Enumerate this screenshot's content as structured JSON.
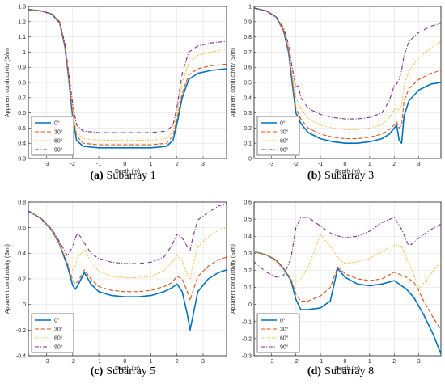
{
  "x_ticks": [
    -3,
    -2,
    -1,
    0,
    1,
    2,
    3
  ],
  "colors": {
    "s0": "#0072BD",
    "s30": "#D95319",
    "s60": "#EDB120",
    "s90": "#7E2F8E"
  },
  "legend_labels": [
    "0°",
    "30°",
    "60°",
    "90°"
  ],
  "chart_data": [
    {
      "type": "line",
      "caption_letter": "(a)",
      "caption_text": "Subarray 1",
      "xlabel": "Depth (m)",
      "ylabel": "Apparent conductivity (S/m)",
      "xlim": [
        -3.7,
        3.9
      ],
      "ylim": [
        0.3,
        1.3
      ],
      "yticks": [
        0.3,
        0.4,
        0.5,
        0.6,
        0.7,
        0.8,
        0.9,
        1,
        1.1,
        1.2,
        1.3
      ],
      "legend_position": "bottom-left",
      "series": [
        {
          "name": "0°",
          "x": [
            -3.7,
            -3.2,
            -2.8,
            -2.5,
            -2.3,
            -2.15,
            -2.0,
            -1.85,
            -1.6,
            -1.0,
            0,
            1.0,
            1.6,
            1.85,
            2.0,
            2.2,
            2.45,
            2.8,
            3.3,
            3.9
          ],
          "y": [
            1.28,
            1.27,
            1.25,
            1.19,
            1.04,
            0.82,
            0.57,
            0.42,
            0.38,
            0.37,
            0.37,
            0.37,
            0.38,
            0.42,
            0.53,
            0.7,
            0.82,
            0.86,
            0.88,
            0.89
          ]
        },
        {
          "name": "30°",
          "x": [
            -3.7,
            -3.2,
            -2.8,
            -2.5,
            -2.3,
            -2.15,
            -2.0,
            -1.85,
            -1.6,
            -1.0,
            0,
            1.0,
            1.6,
            1.85,
            2.0,
            2.2,
            2.45,
            2.8,
            3.3,
            3.9
          ],
          "y": [
            1.28,
            1.27,
            1.25,
            1.19,
            1.04,
            0.82,
            0.59,
            0.45,
            0.4,
            0.39,
            0.39,
            0.39,
            0.4,
            0.45,
            0.56,
            0.73,
            0.85,
            0.89,
            0.91,
            0.92
          ]
        },
        {
          "name": "60°",
          "x": [
            -3.7,
            -3.2,
            -2.8,
            -2.5,
            -2.3,
            -2.15,
            -2.0,
            -1.85,
            -1.6,
            -1.0,
            0,
            1.0,
            1.6,
            1.85,
            2.0,
            2.2,
            2.45,
            2.8,
            3.3,
            3.9
          ],
          "y": [
            1.28,
            1.27,
            1.25,
            1.19,
            1.05,
            0.84,
            0.63,
            0.48,
            0.43,
            0.42,
            0.42,
            0.42,
            0.43,
            0.48,
            0.6,
            0.8,
            0.93,
            0.98,
            1.0,
            1.02
          ]
        },
        {
          "name": "90°",
          "x": [
            -3.7,
            -3.2,
            -2.8,
            -2.5,
            -2.3,
            -2.15,
            -2.0,
            -1.85,
            -1.6,
            -1.0,
            0,
            1.0,
            1.6,
            1.85,
            2.0,
            2.2,
            2.45,
            2.8,
            3.3,
            3.9
          ],
          "y": [
            1.28,
            1.27,
            1.25,
            1.2,
            1.06,
            0.86,
            0.66,
            0.52,
            0.48,
            0.47,
            0.47,
            0.47,
            0.48,
            0.52,
            0.64,
            0.86,
            1.0,
            1.04,
            1.06,
            1.07
          ]
        }
      ]
    },
    {
      "type": "line",
      "caption_letter": "(b)",
      "caption_text": "Subarray 3",
      "xlabel": "Depth (m)",
      "ylabel": "Apparent conductivity (S/m)",
      "xlim": [
        -3.7,
        3.9
      ],
      "ylim": [
        0,
        1
      ],
      "yticks": [
        0,
        0.1,
        0.2,
        0.3,
        0.4,
        0.5,
        0.6,
        0.7,
        0.8,
        0.9,
        1
      ],
      "legend_position": "bottom-left",
      "series": [
        {
          "name": "0°",
          "x": [
            -3.7,
            -3.2,
            -2.8,
            -2.5,
            -2.3,
            -2.15,
            -2.0,
            -1.8,
            -1.5,
            -1.0,
            -0.5,
            0,
            0.5,
            1.0,
            1.5,
            1.8,
            2.0,
            2.1,
            2.2,
            2.3,
            2.4,
            2.6,
            3.0,
            3.5,
            3.9
          ],
          "y": [
            0.99,
            0.97,
            0.93,
            0.84,
            0.7,
            0.5,
            0.3,
            0.23,
            0.17,
            0.13,
            0.11,
            0.1,
            0.1,
            0.11,
            0.13,
            0.16,
            0.2,
            0.22,
            0.12,
            0.1,
            0.28,
            0.38,
            0.45,
            0.49,
            0.5
          ]
        },
        {
          "name": "30°",
          "x": [
            -3.7,
            -3.2,
            -2.8,
            -2.5,
            -2.3,
            -2.15,
            -2.0,
            -1.8,
            -1.5,
            -1.0,
            -0.5,
            0,
            0.5,
            1.0,
            1.5,
            1.8,
            2.0,
            2.1,
            2.2,
            2.3,
            2.4,
            2.6,
            3.0,
            3.5,
            3.9
          ],
          "y": [
            0.99,
            0.97,
            0.93,
            0.84,
            0.71,
            0.52,
            0.33,
            0.26,
            0.2,
            0.16,
            0.14,
            0.13,
            0.13,
            0.14,
            0.16,
            0.19,
            0.22,
            0.24,
            0.2,
            0.22,
            0.38,
            0.46,
            0.52,
            0.56,
            0.58
          ]
        },
        {
          "name": "60°",
          "x": [
            -3.7,
            -3.2,
            -2.8,
            -2.5,
            -2.3,
            -2.15,
            -2.0,
            -1.8,
            -1.5,
            -1.0,
            -0.5,
            0,
            0.5,
            1.0,
            1.5,
            1.8,
            2.0,
            2.1,
            2.2,
            2.3,
            2.4,
            2.6,
            3.0,
            3.5,
            3.9
          ],
          "y": [
            0.99,
            0.97,
            0.93,
            0.85,
            0.73,
            0.56,
            0.4,
            0.33,
            0.26,
            0.22,
            0.2,
            0.19,
            0.19,
            0.2,
            0.22,
            0.27,
            0.32,
            0.33,
            0.32,
            0.35,
            0.48,
            0.58,
            0.66,
            0.73,
            0.77
          ]
        },
        {
          "name": "90°",
          "x": [
            -3.7,
            -3.2,
            -2.8,
            -2.5,
            -2.3,
            -2.15,
            -2.0,
            -1.9,
            -1.8,
            -1.5,
            -1.0,
            -0.5,
            0,
            0.5,
            1.0,
            1.5,
            1.8,
            2.0,
            2.1,
            2.2,
            2.3,
            2.4,
            2.6,
            3.0,
            3.5,
            3.9
          ],
          "y": [
            0.99,
            0.97,
            0.93,
            0.86,
            0.75,
            0.6,
            0.47,
            0.48,
            0.4,
            0.33,
            0.29,
            0.27,
            0.26,
            0.26,
            0.27,
            0.3,
            0.38,
            0.48,
            0.49,
            0.52,
            0.58,
            0.68,
            0.77,
            0.83,
            0.87,
            0.89
          ]
        }
      ]
    },
    {
      "type": "line",
      "caption_letter": "(c)",
      "caption_text": "Subarray 5",
      "xlabel": "Depth (m)",
      "ylabel": "Apparent conductivity (S/m)",
      "xlim": [
        -3.7,
        3.9
      ],
      "ylim": [
        -0.4,
        0.8
      ],
      "yticks": [
        -0.4,
        -0.2,
        0,
        0.2,
        0.4,
        0.6,
        0.8
      ],
      "legend_position": "bottom-left",
      "series": [
        {
          "name": "0°",
          "x": [
            -3.7,
            -3.2,
            -2.8,
            -2.5,
            -2.2,
            -2.0,
            -1.9,
            -1.8,
            -1.55,
            -1.3,
            -1.0,
            -0.5,
            0,
            0.5,
            1.0,
            1.5,
            1.8,
            2.0,
            2.2,
            2.4,
            2.5,
            2.6,
            2.8,
            3.2,
            3.6,
            3.9
          ],
          "y": [
            0.73,
            0.67,
            0.58,
            0.47,
            0.3,
            0.15,
            0.12,
            0.15,
            0.25,
            0.16,
            0.1,
            0.07,
            0.06,
            0.06,
            0.07,
            0.1,
            0.13,
            0.16,
            0.1,
            -0.08,
            -0.2,
            -0.1,
            0.1,
            0.2,
            0.25,
            0.27
          ]
        },
        {
          "name": "30°",
          "x": [
            -3.7,
            -3.2,
            -2.8,
            -2.5,
            -2.2,
            -2.0,
            -1.9,
            -1.8,
            -1.55,
            -1.3,
            -1.0,
            -0.5,
            0,
            0.5,
            1.0,
            1.5,
            1.8,
            2.0,
            2.2,
            2.4,
            2.5,
            2.6,
            2.8,
            3.2,
            3.6,
            3.9
          ],
          "y": [
            0.73,
            0.67,
            0.58,
            0.47,
            0.32,
            0.19,
            0.16,
            0.18,
            0.27,
            0.2,
            0.14,
            0.11,
            0.1,
            0.1,
            0.11,
            0.14,
            0.17,
            0.22,
            0.2,
            0.1,
            0.03,
            0.1,
            0.22,
            0.3,
            0.35,
            0.37
          ]
        },
        {
          "name": "60°",
          "x": [
            -3.7,
            -3.2,
            -2.8,
            -2.5,
            -2.2,
            -2.0,
            -1.9,
            -1.8,
            -1.55,
            -1.3,
            -1.0,
            -0.5,
            0,
            0.5,
            1.0,
            1.5,
            1.8,
            2.0,
            2.2,
            2.4,
            2.5,
            2.6,
            2.8,
            3.2,
            3.6,
            3.9
          ],
          "y": [
            0.73,
            0.67,
            0.58,
            0.47,
            0.34,
            0.27,
            0.3,
            0.37,
            0.43,
            0.33,
            0.26,
            0.22,
            0.21,
            0.21,
            0.22,
            0.26,
            0.33,
            0.38,
            0.34,
            0.23,
            0.2,
            0.3,
            0.45,
            0.53,
            0.58,
            0.6
          ]
        },
        {
          "name": "90°",
          "x": [
            -3.7,
            -3.2,
            -2.8,
            -2.5,
            -2.2,
            -2.0,
            -1.9,
            -1.8,
            -1.55,
            -1.3,
            -1.0,
            -0.5,
            0,
            0.5,
            1.0,
            1.5,
            1.8,
            2.0,
            2.2,
            2.4,
            2.5,
            2.6,
            2.8,
            3.2,
            3.6,
            3.9
          ],
          "y": [
            0.73,
            0.67,
            0.59,
            0.49,
            0.38,
            0.45,
            0.52,
            0.56,
            0.48,
            0.4,
            0.36,
            0.33,
            0.32,
            0.32,
            0.33,
            0.37,
            0.46,
            0.55,
            0.52,
            0.45,
            0.42,
            0.52,
            0.66,
            0.72,
            0.77,
            0.79
          ]
        }
      ]
    },
    {
      "type": "line",
      "caption_letter": "(d)",
      "caption_text": "Subarray 8",
      "xlabel": "Depth (m)",
      "ylabel": "Apparent conductivity (S/m)",
      "xlim": [
        -3.7,
        3.9
      ],
      "ylim": [
        -0.3,
        0.6
      ],
      "yticks": [
        -0.3,
        -0.2,
        -0.1,
        0,
        0.1,
        0.2,
        0.3,
        0.4,
        0.5,
        0.6
      ],
      "legend_position": "bottom-left",
      "series": [
        {
          "name": "0°",
          "x": [
            -3.7,
            -3.2,
            -2.8,
            -2.5,
            -2.2,
            -2.0,
            -1.8,
            -1.5,
            -1.0,
            -0.6,
            -0.3,
            0,
            0.5,
            1.0,
            1.5,
            2.0,
            2.5,
            2.8,
            3.2,
            3.6,
            3.9
          ],
          "y": [
            0.31,
            0.29,
            0.26,
            0.21,
            0.14,
            0.03,
            -0.03,
            -0.03,
            -0.02,
            0.02,
            0.21,
            0.16,
            0.12,
            0.11,
            0.12,
            0.14,
            0.09,
            0.04,
            -0.06,
            -0.18,
            -0.29
          ]
        },
        {
          "name": "30°",
          "x": [
            -3.7,
            -3.2,
            -2.8,
            -2.5,
            -2.2,
            -2.0,
            -1.8,
            -1.5,
            -1.0,
            -0.6,
            -0.3,
            0,
            0.5,
            1.0,
            1.5,
            2.0,
            2.5,
            2.8,
            3.0,
            3.2,
            3.6,
            3.9
          ],
          "y": [
            0.31,
            0.29,
            0.26,
            0.21,
            0.15,
            0.06,
            0.02,
            0.02,
            0.05,
            0.1,
            0.22,
            0.18,
            0.15,
            0.14,
            0.15,
            0.19,
            0.16,
            0.13,
            0.08,
            0.02,
            -0.08,
            -0.15
          ]
        },
        {
          "name": "60°",
          "x": [
            -3.7,
            -3.2,
            -2.8,
            -2.5,
            -2.2,
            -2.0,
            -1.8,
            -1.5,
            -1.2,
            -1.0,
            -0.6,
            -0.2,
            0,
            0.5,
            1.0,
            1.5,
            2.0,
            2.3,
            2.6,
            2.9,
            3.0,
            3.3,
            3.6,
            3.9
          ],
          "y": [
            0.31,
            0.29,
            0.25,
            0.19,
            0.15,
            0.13,
            0.15,
            0.22,
            0.33,
            0.41,
            0.34,
            0.26,
            0.24,
            0.25,
            0.27,
            0.31,
            0.35,
            0.34,
            0.24,
            0.14,
            0.09,
            0.14,
            0.2,
            0.25
          ]
        },
        {
          "name": "90°",
          "x": [
            -3.7,
            -3.2,
            -2.8,
            -2.5,
            -2.2,
            -2.0,
            -1.8,
            -1.5,
            -1.0,
            -0.5,
            0,
            0.5,
            1.0,
            1.5,
            2.0,
            2.3,
            2.6,
            3.0,
            3.5,
            3.9
          ],
          "y": [
            0.25,
            0.19,
            0.16,
            0.17,
            0.27,
            0.45,
            0.51,
            0.51,
            0.46,
            0.41,
            0.39,
            0.4,
            0.43,
            0.48,
            0.51,
            0.44,
            0.34,
            0.39,
            0.44,
            0.47
          ]
        }
      ]
    }
  ]
}
